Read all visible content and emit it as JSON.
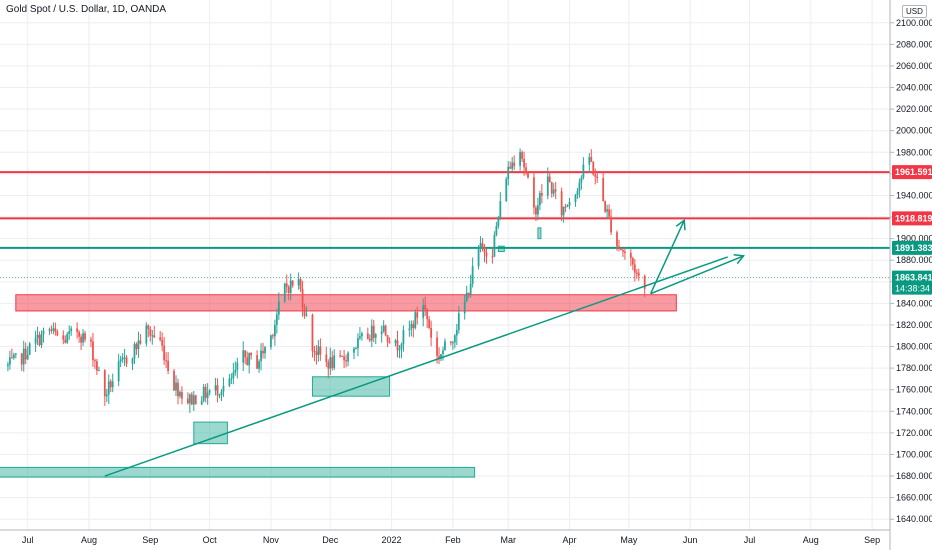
{
  "header": {
    "title": "Gold Spot / U.S. Dollar, 1D, OANDA",
    "currency": "USD"
  },
  "chart_data": {
    "type": "candlestick",
    "symbol": "XAUUSD",
    "ylim": [
      1630,
      2110
    ],
    "y_ticks": [
      1640,
      1660,
      1680,
      1700,
      1720,
      1740,
      1760,
      1780,
      1800,
      1820,
      1840,
      1860,
      1880,
      1900,
      1920,
      1940,
      1960,
      1980,
      2000,
      2020,
      2040,
      2060,
      2080,
      2100
    ],
    "x_ticks": [
      {
        "label": "Jul",
        "date": "2021-07-01"
      },
      {
        "label": "Aug",
        "date": "2021-08-01"
      },
      {
        "label": "Sep",
        "date": "2021-09-01"
      },
      {
        "label": "Oct",
        "date": "2021-10-01"
      },
      {
        "label": "Nov",
        "date": "2021-11-01"
      },
      {
        "label": "Dec",
        "date": "2021-12-01"
      },
      {
        "label": "2022",
        "date": "2022-01-01"
      },
      {
        "label": "Feb",
        "date": "2022-02-01"
      },
      {
        "label": "Mar",
        "date": "2022-03-01"
      },
      {
        "label": "Apr",
        "date": "2022-04-01"
      },
      {
        "label": "May",
        "date": "2022-05-01"
      },
      {
        "label": "Jun",
        "date": "2022-06-01"
      },
      {
        "label": "Jul",
        "date": "2022-07-01"
      },
      {
        "label": "Aug",
        "date": "2022-08-01"
      },
      {
        "label": "Sep",
        "date": "2022-09-01"
      }
    ],
    "close_path": [
      [
        "2021-06-21",
        1782
      ],
      [
        "2021-06-28",
        1790
      ],
      [
        "2021-07-05",
        1805
      ],
      [
        "2021-07-12",
        1815
      ],
      [
        "2021-07-19",
        1805
      ],
      [
        "2021-07-26",
        1815
      ],
      [
        "2021-08-02",
        1800
      ],
      [
        "2021-08-09",
        1755
      ],
      [
        "2021-08-16",
        1780
      ],
      [
        "2021-08-23",
        1795
      ],
      [
        "2021-08-30",
        1815
      ],
      [
        "2021-09-06",
        1805
      ],
      [
        "2021-09-13",
        1765
      ],
      [
        "2021-09-20",
        1750
      ],
      [
        "2021-09-27",
        1755
      ],
      [
        "2021-10-04",
        1760
      ],
      [
        "2021-10-11",
        1765
      ],
      [
        "2021-10-18",
        1790
      ],
      [
        "2021-10-25",
        1785
      ],
      [
        "2021-11-01",
        1810
      ],
      [
        "2021-11-08",
        1855
      ],
      [
        "2021-11-15",
        1860
      ],
      [
        "2021-11-22",
        1800
      ],
      [
        "2021-11-29",
        1785
      ],
      [
        "2021-12-06",
        1785
      ],
      [
        "2021-12-13",
        1800
      ],
      [
        "2021-12-20",
        1810
      ],
      [
        "2021-12-27",
        1820
      ],
      [
        "2022-01-03",
        1800
      ],
      [
        "2022-01-10",
        1815
      ],
      [
        "2022-01-17",
        1840
      ],
      [
        "2022-01-24",
        1790
      ],
      [
        "2022-01-31",
        1805
      ],
      [
        "2022-02-07",
        1840
      ],
      [
        "2022-02-14",
        1890
      ],
      [
        "2022-02-21",
        1890
      ],
      [
        "2022-02-28",
        1960
      ],
      [
        "2022-03-07",
        1985
      ],
      [
        "2022-03-14",
        1925
      ],
      [
        "2022-03-21",
        1955
      ],
      [
        "2022-03-28",
        1925
      ],
      [
        "2022-04-04",
        1945
      ],
      [
        "2022-04-11",
        1975
      ],
      [
        "2022-04-18",
        1935
      ],
      [
        "2022-04-25",
        1895
      ],
      [
        "2022-05-02",
        1880
      ],
      [
        "2022-05-09",
        1852
      ]
    ],
    "horizontal_levels": [
      {
        "label": "1961.591",
        "value": 1961.591,
        "color": "#f23645"
      },
      {
        "label": "1918.819",
        "value": 1918.819,
        "color": "#f23645"
      },
      {
        "label": "1891.383",
        "value": 1891.383,
        "color": "#089981"
      }
    ],
    "current_price": {
      "label": "1863.841",
      "countdown": "14:38:34",
      "value": 1863.841,
      "color": "#089981"
    },
    "zones": [
      {
        "kind": "resistance",
        "color": "#f23645",
        "from": "2021-06-25",
        "to": "2022-05-25",
        "low": 1833,
        "high": 1848
      },
      {
        "kind": "support",
        "color": "#22ab94",
        "from": "2021-06-10",
        "to": "2022-02-12",
        "low": 1679,
        "high": 1688
      },
      {
        "kind": "support",
        "color": "#22ab94",
        "from": "2021-09-23",
        "to": "2021-10-10",
        "low": 1710,
        "high": 1730
      },
      {
        "kind": "support",
        "color": "#22ab94",
        "from": "2021-11-22",
        "to": "2021-12-31",
        "low": 1754,
        "high": 1772
      },
      {
        "kind": "support",
        "color": "#22ab94",
        "from": "2022-02-24",
        "to": "2022-02-27",
        "low": 1888,
        "high": 1893
      },
      {
        "kind": "support",
        "color": "#22ab94",
        "from": "2022-03-16",
        "to": "2022-03-17",
        "low": 1900,
        "high": 1910
      }
    ],
    "trendline": {
      "color": "#089981",
      "from": [
        "2021-08-09",
        1680
      ],
      "to": [
        "2022-06-20",
        1883
      ]
    },
    "projections": [
      {
        "color": "#089981",
        "from": [
          "2022-05-12",
          1849
        ],
        "to": [
          "2022-05-29",
          1917
        ]
      },
      {
        "color": "#089981",
        "from": [
          "2022-05-12",
          1849
        ],
        "to": [
          "2022-06-28",
          1884
        ]
      }
    ],
    "colors": {
      "up": "#26a69a",
      "down": "#ef5350",
      "grid": "#eceef2",
      "text": "#131722"
    }
  }
}
